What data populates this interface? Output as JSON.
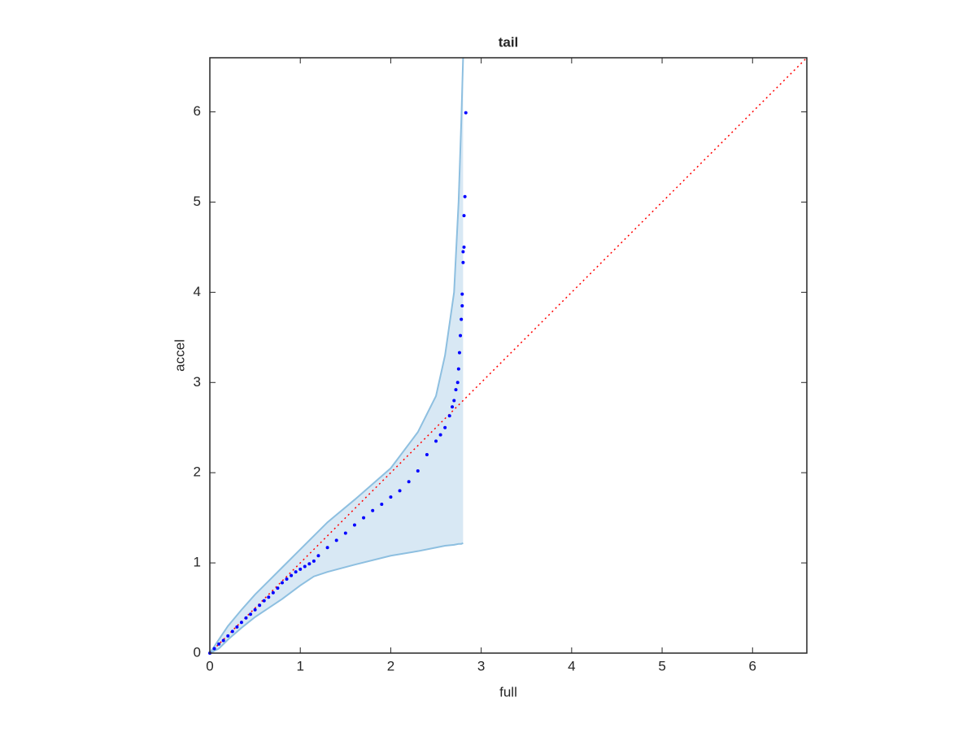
{
  "chart_data": {
    "type": "scatter",
    "title": "tail",
    "xlabel": "full",
    "ylabel": "accel",
    "xlim": [
      0,
      6.6
    ],
    "ylim": [
      0,
      6.6
    ],
    "xticks": [
      0,
      1,
      2,
      3,
      4,
      5,
      6
    ],
    "yticks": [
      0,
      1,
      2,
      3,
      4,
      5,
      6
    ],
    "series": [
      {
        "kind": "envelope",
        "color": "#8dbfe0",
        "fill": "#d8e8f4",
        "x": [
          0,
          0.1,
          0.2,
          0.35,
          0.5,
          0.65,
          0.8,
          1.0,
          1.15,
          1.3,
          1.6,
          2.0,
          2.3,
          2.5,
          2.6,
          2.7,
          2.75,
          2.78,
          2.8
        ],
        "upper": [
          0,
          0.15,
          0.3,
          0.48,
          0.65,
          0.8,
          0.95,
          1.15,
          1.3,
          1.45,
          1.7,
          2.05,
          2.45,
          2.85,
          3.3,
          4.0,
          5.0,
          5.9,
          6.6
        ],
        "lower": [
          0,
          0.05,
          0.15,
          0.28,
          0.4,
          0.5,
          0.6,
          0.75,
          0.85,
          0.9,
          0.98,
          1.08,
          1.13,
          1.17,
          1.19,
          1.2,
          1.21,
          1.21,
          1.22
        ]
      },
      {
        "kind": "points",
        "color": "#0000ff",
        "x": [
          0,
          0.05,
          0.1,
          0.15,
          0.2,
          0.25,
          0.3,
          0.35,
          0.4,
          0.45,
          0.5,
          0.55,
          0.6,
          0.65,
          0.7,
          0.75,
          0.8,
          0.85,
          0.9,
          0.95,
          1.0,
          1.05,
          1.1,
          1.15,
          1.2,
          1.3,
          1.4,
          1.5,
          1.6,
          1.7,
          1.8,
          1.9,
          2.0,
          2.1,
          2.2,
          2.3,
          2.4,
          2.5,
          2.55,
          2.6,
          2.65,
          2.68,
          2.7,
          2.72,
          2.74,
          2.75,
          2.76,
          2.77,
          2.78,
          2.79,
          2.79,
          2.8,
          2.8,
          2.81,
          2.81,
          2.82,
          2.83
        ],
        "y": [
          0,
          0.05,
          0.1,
          0.14,
          0.19,
          0.24,
          0.29,
          0.34,
          0.39,
          0.43,
          0.48,
          0.53,
          0.58,
          0.62,
          0.67,
          0.72,
          0.78,
          0.82,
          0.86,
          0.9,
          0.93,
          0.96,
          0.99,
          1.02,
          1.08,
          1.17,
          1.25,
          1.33,
          1.42,
          1.5,
          1.58,
          1.65,
          1.73,
          1.8,
          1.9,
          2.02,
          2.2,
          2.35,
          2.42,
          2.5,
          2.63,
          2.73,
          2.8,
          2.92,
          3.0,
          3.15,
          3.33,
          3.52,
          3.7,
          3.85,
          3.98,
          4.33,
          4.45,
          4.5,
          4.85,
          5.06,
          5.99
        ]
      },
      {
        "kind": "reference",
        "color": "#ff0000",
        "x": [
          0,
          6.6
        ],
        "y": [
          0,
          6.6
        ]
      }
    ]
  }
}
